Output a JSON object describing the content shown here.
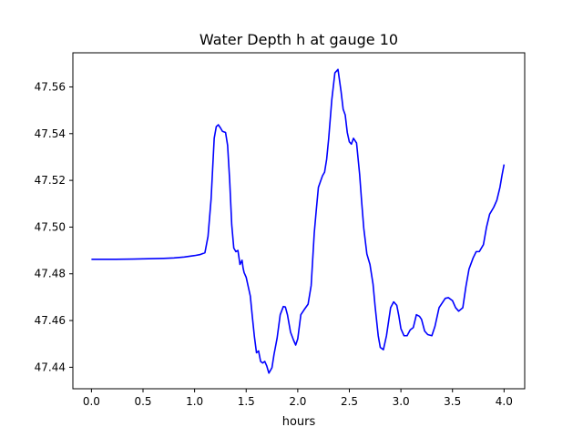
{
  "chart_data": {
    "type": "line",
    "title": "Water Depth h at gauge 10",
    "xlabel": "hours",
    "ylabel": "",
    "xlim": [
      -0.18,
      4.2
    ],
    "ylim": [
      47.4308,
      47.5746
    ],
    "xticks": [
      0.0,
      0.5,
      1.0,
      1.5,
      2.0,
      2.5,
      3.0,
      3.5,
      4.0
    ],
    "xtick_labels": [
      "0.0",
      "0.5",
      "1.0",
      "1.5",
      "2.0",
      "2.5",
      "3.0",
      "3.5",
      "4.0"
    ],
    "yticks": [
      47.44,
      47.46,
      47.48,
      47.5,
      47.52,
      47.54,
      47.56
    ],
    "ytick_labels": [
      "47.44",
      "47.46",
      "47.48",
      "47.50",
      "47.52",
      "47.54",
      "47.56"
    ],
    "grid": false,
    "series": [
      {
        "color": "#0000ff",
        "x": [
          0.0,
          0.2,
          0.4,
          0.6,
          0.7,
          0.8,
          0.9,
          1.0,
          1.05,
          1.1,
          1.13,
          1.16,
          1.19,
          1.21,
          1.23,
          1.25,
          1.27,
          1.3,
          1.32,
          1.34,
          1.36,
          1.38,
          1.4,
          1.42,
          1.44,
          1.46,
          1.47,
          1.48,
          1.5,
          1.52,
          1.54,
          1.56,
          1.58,
          1.6,
          1.62,
          1.64,
          1.66,
          1.68,
          1.7,
          1.72,
          1.75,
          1.77,
          1.8,
          1.83,
          1.86,
          1.88,
          1.9,
          1.93,
          1.96,
          1.98,
          2.0,
          2.03,
          2.06,
          2.1,
          2.13,
          2.16,
          2.18,
          2.2,
          2.22,
          2.24,
          2.26,
          2.28,
          2.3,
          2.33,
          2.36,
          2.39,
          2.42,
          2.44,
          2.46,
          2.48,
          2.5,
          2.52,
          2.54,
          2.57,
          2.6,
          2.62,
          2.64,
          2.67,
          2.7,
          2.73,
          2.75,
          2.78,
          2.8,
          2.83,
          2.86,
          2.88,
          2.9,
          2.93,
          2.96,
          2.98,
          3.0,
          3.03,
          3.06,
          3.09,
          3.12,
          3.15,
          3.18,
          3.2,
          3.23,
          3.26,
          3.3,
          3.33,
          3.37,
          3.4,
          3.43,
          3.46,
          3.5,
          3.53,
          3.56,
          3.6,
          3.63,
          3.66,
          3.7,
          3.73,
          3.76,
          3.8,
          3.83,
          3.86,
          3.9,
          3.93,
          3.96,
          3.98,
          4.0
        ],
        "y": [
          47.4862,
          47.4862,
          47.4863,
          47.4865,
          47.4866,
          47.4868,
          47.4872,
          47.4878,
          47.4882,
          47.489,
          47.496,
          47.512,
          47.538,
          47.543,
          47.5438,
          47.5425,
          47.541,
          47.5405,
          47.535,
          47.52,
          47.501,
          47.491,
          47.4895,
          47.49,
          47.484,
          47.4858,
          47.4825,
          47.4805,
          47.4785,
          47.4745,
          47.4705,
          47.4615,
          47.453,
          47.4462,
          47.447,
          47.4425,
          47.4418,
          47.4425,
          47.4405,
          47.4375,
          47.4398,
          47.4455,
          47.4525,
          47.4625,
          47.466,
          47.4658,
          47.4625,
          47.455,
          47.4515,
          47.4495,
          47.4522,
          47.4625,
          47.4645,
          47.467,
          47.475,
          47.4975,
          47.5075,
          47.517,
          47.5195,
          47.522,
          47.5235,
          47.529,
          47.538,
          47.5545,
          47.566,
          47.5675,
          47.558,
          47.5505,
          47.548,
          47.5405,
          47.5365,
          47.5355,
          47.538,
          47.536,
          47.5225,
          47.5105,
          47.4995,
          47.4885,
          47.484,
          47.4755,
          47.466,
          47.4535,
          47.4485,
          47.4475,
          47.4535,
          47.4595,
          47.4655,
          47.468,
          47.4665,
          47.462,
          47.4565,
          47.4535,
          47.4535,
          47.456,
          47.457,
          47.4625,
          47.4618,
          47.4605,
          47.4555,
          47.454,
          47.4535,
          47.4575,
          47.4655,
          47.4675,
          47.4695,
          47.4698,
          47.4685,
          47.4655,
          47.464,
          47.4655,
          47.4745,
          47.482,
          47.4868,
          47.4895,
          47.4895,
          47.4925,
          47.5,
          47.5055,
          47.5085,
          47.5115,
          47.517,
          47.5222,
          47.5268
        ]
      }
    ]
  }
}
